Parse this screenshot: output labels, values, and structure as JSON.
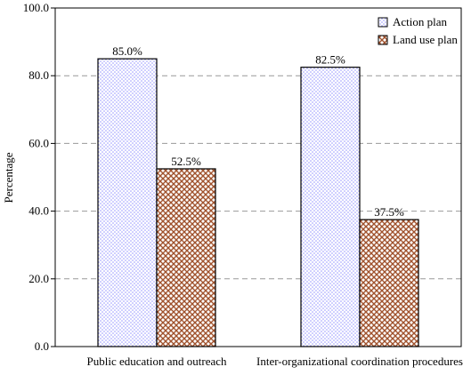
{
  "chart_data": {
    "type": "bar",
    "y_label": "Percentage",
    "categories": [
      "Public education and outreach",
      "Inter-organizational coordination procedures"
    ],
    "series": [
      {
        "name": "Action plan",
        "color": "#9999ff",
        "values": [
          85.0,
          82.5
        ],
        "value_labels": [
          "85.0%",
          "82.5%"
        ]
      },
      {
        "name": "Land use plan",
        "color": "#a0522d",
        "values": [
          52.5,
          37.5
        ],
        "value_labels": [
          "52.5%",
          "37.5%"
        ]
      }
    ],
    "ylim": [
      0,
      100
    ],
    "yticks": [
      {
        "value": 0,
        "label": "0.0"
      },
      {
        "value": 20,
        "label": "20.0"
      },
      {
        "value": 40,
        "label": "40.0"
      },
      {
        "value": 60,
        "label": "60.0"
      },
      {
        "value": 80,
        "label": "80.0"
      },
      {
        "value": 100,
        "label": "100.0"
      }
    ],
    "grid": true,
    "legend": "top-right"
  }
}
